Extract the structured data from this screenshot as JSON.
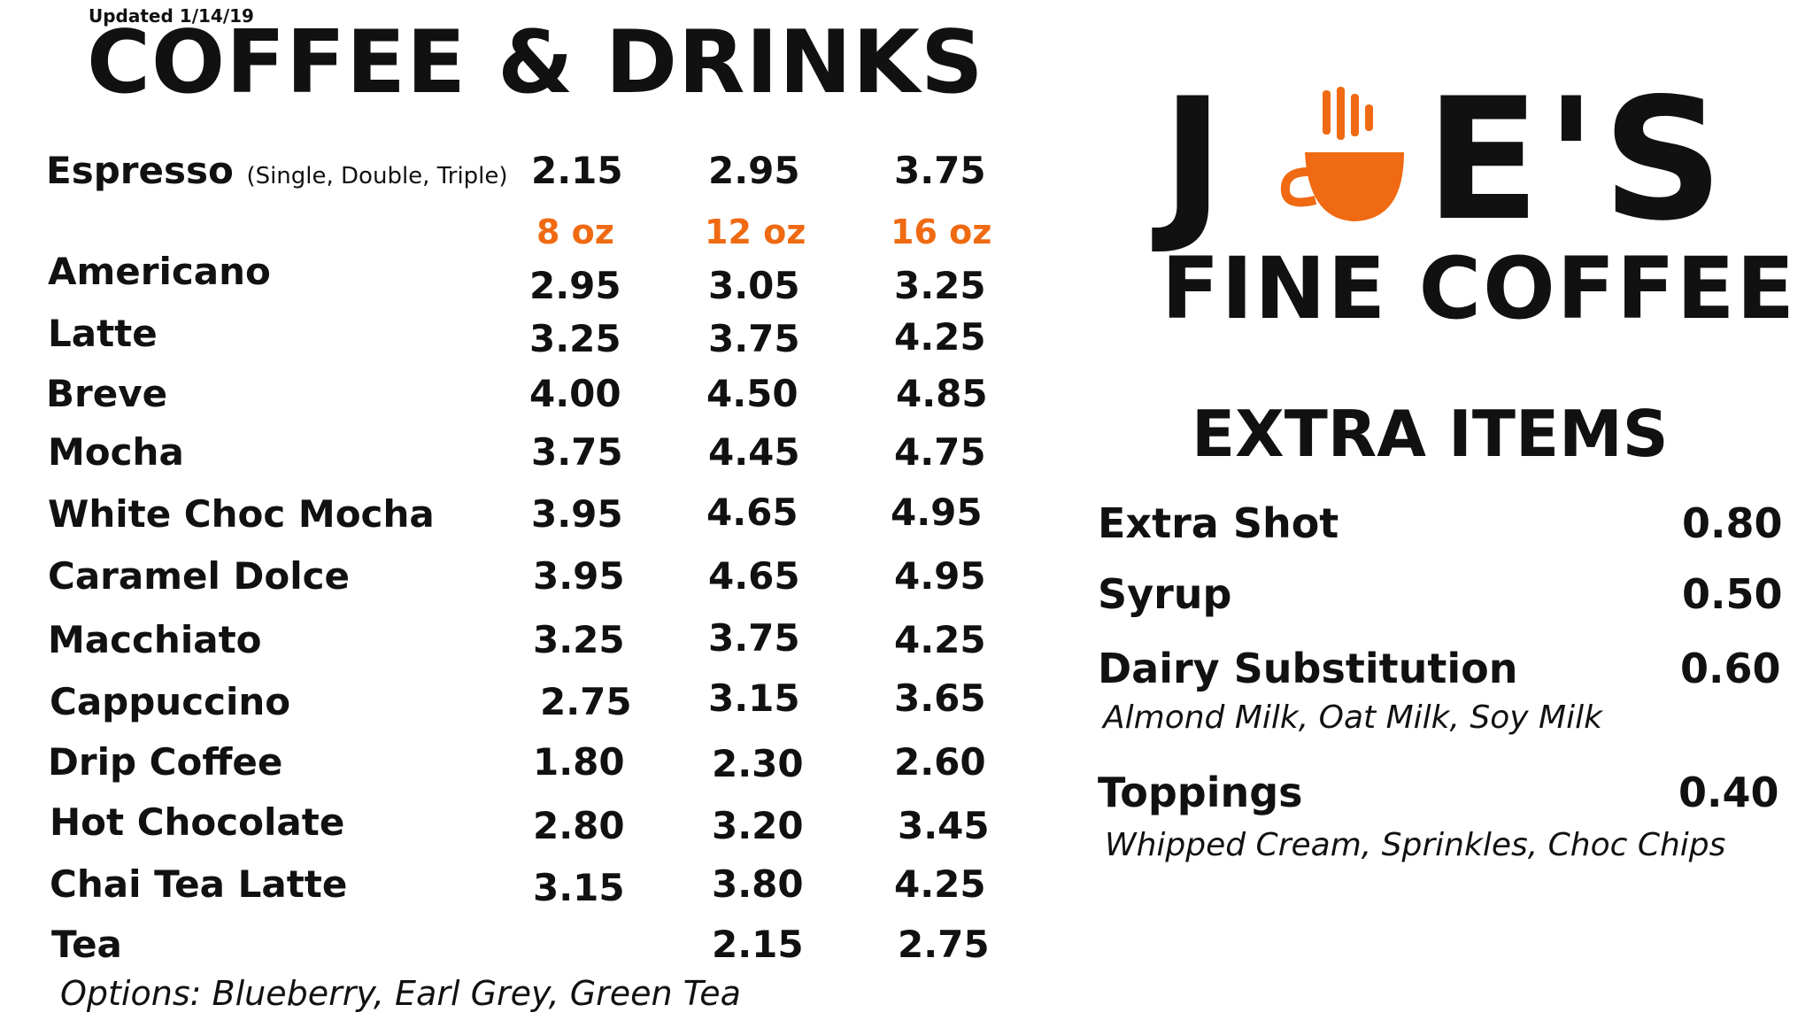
{
  "header": {
    "updated": "Updated 1/14/19",
    "title": "COFFEE & DRINKS"
  },
  "espresso": {
    "name": "Espresso",
    "note": "(Single, Double, Triple)",
    "prices": [
      "2.15",
      "2.95",
      "3.75"
    ]
  },
  "sizes": [
    "8 oz",
    "12 oz",
    "16 oz"
  ],
  "drinks": [
    {
      "name": "Americano",
      "prices": [
        "2.95",
        "3.05",
        "3.25"
      ]
    },
    {
      "name": "Latte",
      "prices": [
        "3.25",
        "3.75",
        "4.25"
      ]
    },
    {
      "name": "Breve",
      "prices": [
        "4.00",
        "4.50",
        "4.85"
      ]
    },
    {
      "name": "Mocha",
      "prices": [
        "3.75",
        "4.45",
        "4.75"
      ]
    },
    {
      "name": "White Choc Mocha",
      "prices": [
        "3.95",
        "4.65",
        "4.95"
      ]
    },
    {
      "name": "Caramel Dolce",
      "prices": [
        "3.95",
        "4.65",
        "4.95"
      ]
    },
    {
      "name": "Macchiato",
      "prices": [
        "3.25",
        "3.75",
        "4.25"
      ]
    },
    {
      "name": "Cappuccino",
      "prices": [
        "2.75",
        "3.15",
        "3.65"
      ]
    },
    {
      "name": "Drip Coffee",
      "prices": [
        "1.80",
        "2.30",
        "2.60"
      ]
    },
    {
      "name": "Hot Chocolate",
      "prices": [
        "2.80",
        "3.20",
        "3.45"
      ]
    },
    {
      "name": "Chai Tea Latte",
      "prices": [
        "3.15",
        "3.80",
        "4.25"
      ]
    },
    {
      "name": "Tea",
      "prices": [
        "",
        "2.15",
        "2.75"
      ]
    }
  ],
  "tea_options": "Options: Blueberry, Earl Grey, Green Tea",
  "logo": {
    "j": "J",
    "rest": "E'S",
    "subtitle": "FINE COFFEE",
    "icon": "coffee-cup-icon"
  },
  "extras": {
    "title": "EXTRA ITEMS",
    "items": [
      {
        "name": "Extra Shot",
        "price": "0.80"
      },
      {
        "name": "Syrup",
        "price": "0.50"
      },
      {
        "name": "Dairy Substitution",
        "price": "0.60",
        "sub": "Almond Milk, Oat Milk, Soy Milk"
      },
      {
        "name": "Toppings",
        "price": "0.40",
        "sub": "Whipped Cream, Sprinkles, Choc Chips"
      }
    ]
  },
  "colors": {
    "accent": "#EF6A12",
    "text": "#111111",
    "background": "#ffffff"
  }
}
